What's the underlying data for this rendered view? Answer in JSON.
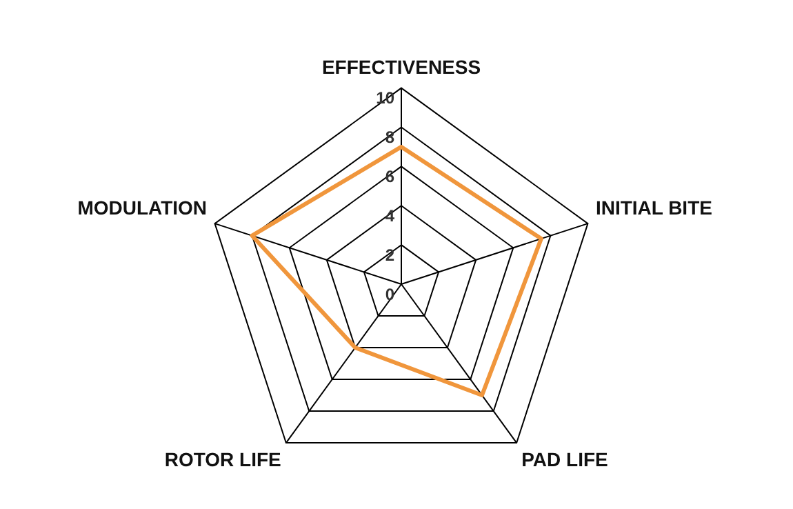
{
  "chart_data": {
    "type": "radar",
    "categories": [
      "EFFECTIVENESS",
      "INITIAL BITE",
      "PAD LIFE",
      "ROTOR LIFE",
      "MODULATION"
    ],
    "series": [
      {
        "color": "#f0963c",
        "values": [
          7,
          7.5,
          7,
          4,
          8
        ]
      }
    ],
    "ylim": [
      0,
      10
    ],
    "yticks": [
      0,
      2,
      4,
      6,
      8,
      10
    ],
    "grid": true,
    "legend": false,
    "marker": "none",
    "line_style": "solid"
  }
}
